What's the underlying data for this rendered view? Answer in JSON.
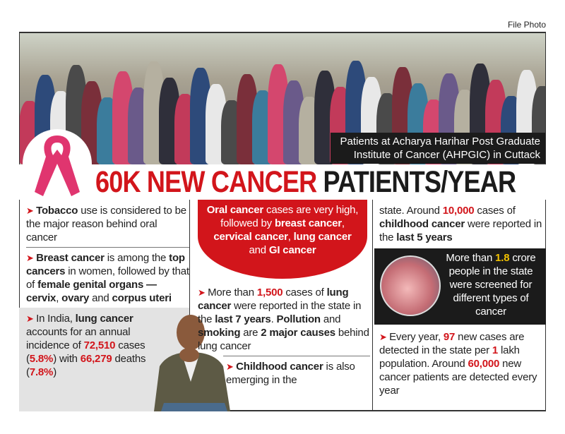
{
  "credit": "File Photo",
  "caption": "Patients at Acharya Harihar Post Graduate Institute of Cancer (AHPGIC) in Cuttack",
  "title": {
    "red": "60K NEW CANCER",
    "black": "PATIENTS/YEAR"
  },
  "colors": {
    "accent": "#d2151b",
    "highlight": "#f2c200",
    "ribbon": "#e0356f",
    "dark": "#1b1b1b"
  },
  "icons": [
    "pink-ribbon-icon",
    "arrow-bullet-icon"
  ],
  "col1": [
    [
      [
        "Tobacco",
        "b"
      ],
      [
        " use is considered to be the major reason behind oral cancer",
        ""
      ]
    ],
    [
      [
        "Breast cancer",
        "b"
      ],
      [
        " is among the ",
        ""
      ],
      [
        "top cancers",
        "b"
      ],
      [
        " in women, followed by that of ",
        ""
      ],
      [
        "female genital organs — cervix",
        "b"
      ],
      [
        ", ",
        ""
      ],
      [
        "ovary",
        "b"
      ],
      [
        " and ",
        ""
      ],
      [
        "corpus uteri",
        "b"
      ]
    ],
    [
      [
        "In India, ",
        ""
      ],
      [
        "lung cancer",
        "b"
      ],
      [
        " accounts for an annual incidence of ",
        ""
      ],
      [
        "72,510",
        "red"
      ],
      [
        " cases (",
        ""
      ],
      [
        "5.8%",
        "red"
      ],
      [
        ") with ",
        ""
      ],
      [
        "66,279",
        "red"
      ],
      [
        " deaths (",
        ""
      ],
      [
        "7.8%",
        "red"
      ],
      [
        ")",
        ""
      ]
    ]
  ],
  "redbox": [
    [
      "Oral cancer",
      "b"
    ],
    [
      " cases are very high, followed by ",
      ""
    ],
    [
      "breast cancer",
      "b"
    ],
    [
      ", ",
      ""
    ],
    [
      "cervical cancer",
      "b"
    ],
    [
      ", ",
      ""
    ],
    [
      "lung cancer",
      "b"
    ],
    [
      " and ",
      ""
    ],
    [
      "GI cancer",
      "b"
    ]
  ],
  "col2": [
    [
      [
        "More than ",
        ""
      ],
      [
        "1,500",
        "red"
      ],
      [
        " cases of ",
        ""
      ],
      [
        "lung cancer",
        "b"
      ],
      [
        " were reported in the state in the ",
        ""
      ],
      [
        "last 7 years",
        "b"
      ],
      [
        ". ",
        ""
      ],
      [
        "Pollution",
        "b"
      ],
      [
        " and ",
        ""
      ],
      [
        "smoking",
        "b"
      ],
      [
        " are ",
        ""
      ],
      [
        "2 major causes",
        "b"
      ],
      [
        " behind lung cancer",
        ""
      ]
    ],
    [
      [
        "Childhood cancer",
        "b"
      ],
      [
        " is also emerging in the",
        ""
      ]
    ]
  ],
  "col3": [
    [
      [
        "state. Around ",
        ""
      ],
      [
        "10,000",
        "red"
      ],
      [
        " cases of ",
        ""
      ],
      [
        "childhood cancer",
        "b"
      ],
      [
        " were reported in the ",
        ""
      ],
      [
        "last 5 years",
        "b"
      ]
    ],
    [
      [
        "Every year, ",
        ""
      ],
      [
        "97",
        "red"
      ],
      [
        " new cases are detected in the state per ",
        ""
      ],
      [
        "1",
        "red"
      ],
      [
        " lakh population. Around ",
        ""
      ],
      [
        "60,000",
        "red"
      ],
      [
        " new cancer patients are detected every year",
        ""
      ]
    ]
  ],
  "darkbox": [
    [
      "More than ",
      ""
    ],
    [
      "1.8",
      "yel"
    ],
    [
      " crore people in the state were screened for different types of cancer",
      ""
    ]
  ]
}
